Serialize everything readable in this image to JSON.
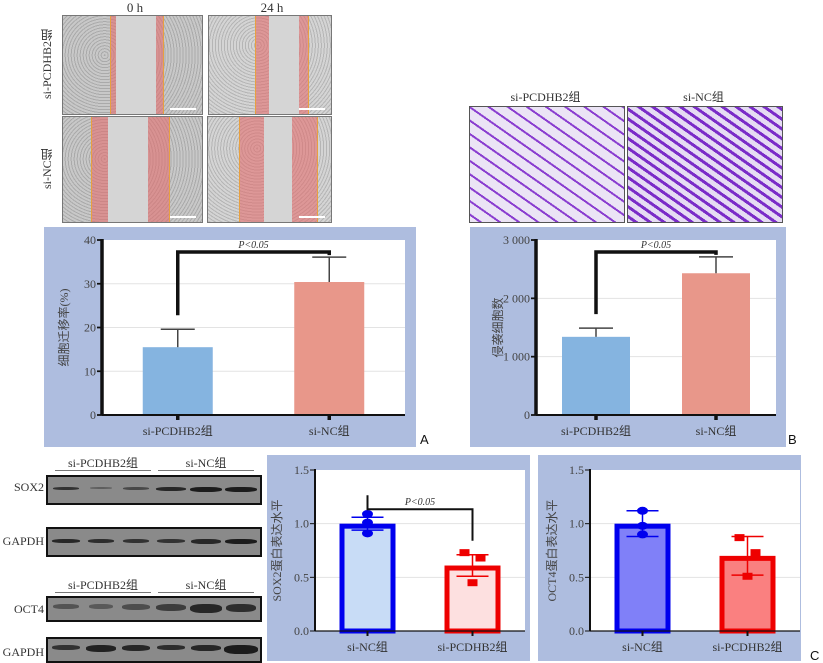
{
  "panelA": {
    "letter": "A",
    "images": {
      "col_headers": [
        "0 h",
        "24 h"
      ],
      "row_labels": [
        "si-PCDHB2组",
        "si-NC组"
      ]
    }
  },
  "panelB": {
    "letter": "B",
    "images": {
      "col_headers": [
        "si-PCDHB2组",
        "si-NC组"
      ]
    }
  },
  "panelC": {
    "letter": "C",
    "blots": {
      "group_labels": [
        "si-PCDHB2组",
        "si-NC组"
      ],
      "rows": [
        "SOX2",
        "GAPDH",
        "OCT4",
        "GAPDH"
      ]
    }
  },
  "chart_data": [
    {
      "id": "migration",
      "type": "bar",
      "title": "",
      "xlabel": "",
      "ylabel": "细胞迁移率(%)",
      "categories": [
        "si-PCDHB2组",
        "si-NC组"
      ],
      "values": [
        15.5,
        30.4
      ],
      "errors": [
        4.1,
        5.7
      ],
      "colors": [
        "#85b4e0",
        "#e8978a"
      ],
      "ylim": [
        0,
        40
      ],
      "yticks": [
        0,
        10,
        20,
        30,
        40
      ],
      "ytick_labels": [
        "0",
        "10",
        "20",
        "30",
        "40"
      ],
      "grid": true,
      "annotation": "P<0.05"
    },
    {
      "id": "invasion",
      "type": "bar",
      "title": "",
      "xlabel": "",
      "ylabel": "侵袭细胞数",
      "categories": [
        "si-PCDHB2组",
        "si-NC组"
      ],
      "values": [
        1340,
        2430
      ],
      "errors": [
        150,
        280
      ],
      "colors": [
        "#85b4e0",
        "#e8978a"
      ],
      "ylim": [
        0,
        3000
      ],
      "yticks": [
        0,
        1000,
        2000,
        3000
      ],
      "ytick_labels": [
        "0",
        "1 000",
        "2 000",
        "3 000"
      ],
      "grid": true,
      "annotation": "P<0.05"
    },
    {
      "id": "sox2",
      "type": "bar",
      "title": "",
      "xlabel": "",
      "ylabel": "SOX2蛋白表达水平",
      "categories": [
        "si-NC组",
        "si-PCDHB2组"
      ],
      "values": [
        1.0,
        0.61
      ],
      "errors": [
        0.06,
        0.1
      ],
      "points": [
        [
          1.09,
          1.01,
          0.91
        ],
        [
          0.73,
          0.68,
          0.45
        ]
      ],
      "point_shapes": [
        "circle",
        "square"
      ],
      "edge_colors": [
        "#0000ee",
        "#ee0000"
      ],
      "fill_colors": [
        "#c8dcf6",
        "#fde0e0"
      ],
      "ylim": [
        0,
        1.5
      ],
      "yticks": [
        0,
        0.5,
        1.0,
        1.5
      ],
      "ytick_labels": [
        "0.0",
        "0.5",
        "1.0",
        "1.5"
      ],
      "grid": true,
      "annotation": "P<0.05"
    },
    {
      "id": "oct4",
      "type": "bar",
      "title": "",
      "xlabel": "",
      "ylabel": "OCT4蛋白表达水平",
      "categories": [
        "si-NC组",
        "si-PCDHB2组"
      ],
      "values": [
        1.0,
        0.7
      ],
      "errors": [
        0.12,
        0.18
      ],
      "points": [
        [
          1.12,
          0.98,
          0.9
        ],
        [
          0.87,
          0.73,
          0.51
        ]
      ],
      "point_shapes": [
        "circle",
        "square"
      ],
      "edge_colors": [
        "#0000ee",
        "#ee0000"
      ],
      "fill_colors": [
        "#8080f8",
        "#fa8080"
      ],
      "ylim": [
        0,
        1.5
      ],
      "yticks": [
        0,
        0.5,
        1.0,
        1.5
      ],
      "ytick_labels": [
        "0.0",
        "0.5",
        "1.0",
        "1.5"
      ],
      "grid": true,
      "annotation": ""
    }
  ]
}
